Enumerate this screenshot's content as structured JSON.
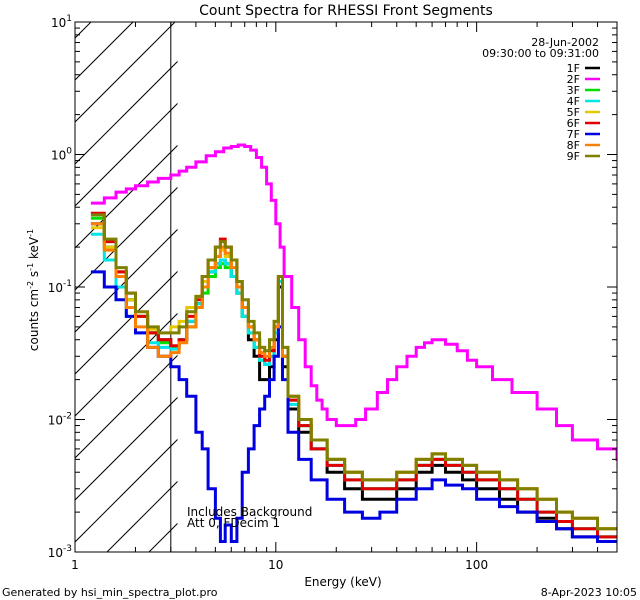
{
  "chart_data": {
    "type": "line",
    "title": "Count Spectra for RHESSI Front Segments",
    "xlabel": "Energy (keV)",
    "ylabel_parts": [
      "counts cm",
      "-2",
      " s",
      "-1",
      " keV",
      "-1"
    ],
    "xscale": "log",
    "yscale": "log",
    "xlim": [
      1,
      500
    ],
    "ylim": [
      0.001,
      10
    ],
    "x_ticks": [
      {
        "value": 1,
        "label": "1"
      },
      {
        "value": 10,
        "label": "10"
      },
      {
        "value": 100,
        "label": "100"
      }
    ],
    "y_ticks": [
      {
        "value": 0.001,
        "base": "10",
        "exp": "-3"
      },
      {
        "value": 0.01,
        "base": "10",
        "exp": "-2"
      },
      {
        "value": 0.1,
        "base": "10",
        "exp": "-1"
      },
      {
        "value": 1,
        "base": "10",
        "exp": "0"
      },
      {
        "value": 10,
        "base": "10",
        "exp": "1"
      }
    ],
    "hatched_region": [
      1,
      3
    ],
    "info": {
      "date": "28-Jun-2002",
      "time_range": "09:30:00 to 09:31:00"
    },
    "annotation": [
      "Includes Background",
      "Att 0, FDecim 1"
    ],
    "legend_position": "top-right",
    "series": [
      {
        "name": "1F",
        "color": "#000000",
        "x": [
          1.2,
          1.4,
          1.6,
          1.8,
          2.0,
          2.3,
          2.6,
          3.0,
          3.3,
          3.6,
          4.0,
          4.3,
          4.6,
          5.0,
          5.3,
          5.6,
          6.0,
          6.4,
          6.8,
          7.3,
          7.8,
          8.3,
          8.8,
          9.3,
          9.8,
          10.3,
          10.8,
          11.5,
          13,
          15,
          18,
          22,
          27,
          33,
          40,
          50,
          60,
          70,
          85,
          100,
          130,
          160,
          200,
          250,
          300,
          400
        ],
        "y": [
          0.3,
          0.2,
          0.12,
          0.08,
          0.06,
          0.045,
          0.04,
          0.035,
          0.04,
          0.055,
          0.075,
          0.1,
          0.13,
          0.15,
          0.16,
          0.15,
          0.12,
          0.09,
          0.06,
          0.04,
          0.03,
          0.02,
          0.02,
          0.025,
          0.04,
          0.1,
          0.025,
          0.012,
          0.008,
          0.006,
          0.004,
          0.003,
          0.0025,
          0.0025,
          0.003,
          0.004,
          0.0045,
          0.004,
          0.0035,
          0.003,
          0.0025,
          0.002,
          0.0018,
          0.0015,
          0.0013,
          0.0012
        ]
      },
      {
        "name": "2F",
        "color": "#ff00ff",
        "x": [
          1.2,
          1.4,
          1.6,
          1.8,
          2.0,
          2.3,
          2.6,
          3.0,
          3.3,
          3.6,
          4.0,
          4.5,
          5.0,
          5.5,
          6.0,
          6.5,
          7.0,
          7.5,
          8.0,
          8.5,
          9.0,
          9.5,
          10.0,
          10.5,
          11.0,
          12.0,
          13.0,
          14.0,
          15.0,
          16.0,
          17.0,
          18.0,
          20.0,
          22.0,
          25.0,
          28.0,
          32.0,
          36.0,
          40.0,
          45.0,
          50.0,
          55.0,
          60.0,
          70.0,
          80.0,
          90.0,
          100.0,
          120.0,
          150.0,
          200.0,
          250.0,
          300.0,
          400.0,
          500.0
        ],
        "y": [
          0.43,
          0.47,
          0.52,
          0.55,
          0.58,
          0.62,
          0.66,
          0.7,
          0.75,
          0.8,
          0.88,
          0.98,
          1.05,
          1.12,
          1.15,
          1.18,
          1.15,
          1.08,
          0.95,
          0.8,
          0.6,
          0.45,
          0.3,
          0.2,
          0.12,
          0.07,
          0.04,
          0.025,
          0.018,
          0.014,
          0.012,
          0.01,
          0.009,
          0.009,
          0.01,
          0.012,
          0.016,
          0.02,
          0.025,
          0.03,
          0.035,
          0.038,
          0.04,
          0.037,
          0.033,
          0.028,
          0.025,
          0.02,
          0.016,
          0.012,
          0.009,
          0.007,
          0.006,
          0.005
        ]
      },
      {
        "name": "3F",
        "color": "#00e000",
        "x": [
          1.2,
          1.4,
          1.6,
          1.8,
          2.0,
          2.3,
          2.6,
          3.0,
          3.3,
          3.6,
          4.0,
          4.3,
          4.6,
          5.0,
          5.3,
          5.6,
          6.0,
          6.4,
          6.8,
          7.3,
          7.8,
          8.3,
          8.8,
          9.3,
          9.8,
          10.3,
          10.8,
          11.5,
          13,
          15,
          18,
          22,
          27,
          33,
          40,
          50,
          60,
          70,
          85,
          100,
          130,
          160,
          200,
          250,
          300,
          400
        ],
        "y": [
          0.33,
          0.22,
          0.13,
          0.08,
          0.06,
          0.045,
          0.038,
          0.035,
          0.04,
          0.05,
          0.07,
          0.09,
          0.12,
          0.14,
          0.15,
          0.14,
          0.12,
          0.09,
          0.06,
          0.045,
          0.035,
          0.028,
          0.026,
          0.03,
          0.045,
          0.11,
          0.03,
          0.014,
          0.009,
          0.007,
          0.005,
          0.004,
          0.003,
          0.003,
          0.0035,
          0.0045,
          0.005,
          0.0045,
          0.004,
          0.0035,
          0.003,
          0.0025,
          0.002,
          0.0017,
          0.0015,
          0.0013
        ]
      },
      {
        "name": "4F",
        "color": "#00e5e5",
        "x": [
          1.2,
          1.4,
          1.6,
          1.8,
          2.0,
          2.3,
          2.6,
          3.0,
          3.3,
          3.6,
          4.0,
          4.3,
          4.6,
          5.0,
          5.3,
          5.6,
          6.0,
          6.4,
          6.8,
          7.3,
          7.8,
          8.3,
          8.8,
          9.3,
          9.8,
          10.3,
          10.8,
          11.5,
          13,
          15,
          18,
          22,
          27,
          33,
          40,
          50,
          60,
          70,
          85,
          100,
          130,
          160,
          200,
          250,
          300,
          400
        ],
        "y": [
          0.25,
          0.16,
          0.1,
          0.06,
          0.045,
          0.038,
          0.035,
          0.034,
          0.04,
          0.055,
          0.075,
          0.1,
          0.13,
          0.15,
          0.16,
          0.15,
          0.12,
          0.09,
          0.06,
          0.045,
          0.035,
          0.028,
          0.026,
          0.03,
          0.045,
          0.11,
          0.03,
          0.013,
          0.009,
          0.006,
          0.0045,
          0.0035,
          0.003,
          0.003,
          0.0035,
          0.0045,
          0.005,
          0.0045,
          0.004,
          0.0035,
          0.003,
          0.0025,
          0.002,
          0.0017,
          0.0015,
          0.0013
        ]
      },
      {
        "name": "5F",
        "color": "#e5c800",
        "x": [
          1.2,
          1.4,
          1.6,
          1.8,
          2.0,
          2.3,
          2.6,
          3.0,
          3.3,
          3.6,
          4.0,
          4.3,
          4.6,
          5.0,
          5.3,
          5.6,
          6.0,
          6.4,
          6.8,
          7.3,
          7.8,
          8.3,
          8.8,
          9.3,
          9.8,
          10.3,
          10.8,
          11.5,
          13,
          15,
          18,
          22,
          27,
          33,
          40,
          50,
          60,
          70,
          85,
          100,
          130,
          160,
          200,
          250,
          300,
          400
        ],
        "y": [
          0.28,
          0.2,
          0.13,
          0.08,
          0.06,
          0.048,
          0.045,
          0.05,
          0.055,
          0.07,
          0.085,
          0.11,
          0.14,
          0.17,
          0.19,
          0.17,
          0.14,
          0.1,
          0.07,
          0.05,
          0.04,
          0.035,
          0.033,
          0.04,
          0.055,
          0.12,
          0.035,
          0.015,
          0.01,
          0.007,
          0.005,
          0.004,
          0.0035,
          0.0035,
          0.004,
          0.005,
          0.0055,
          0.005,
          0.0045,
          0.004,
          0.0035,
          0.003,
          0.0025,
          0.002,
          0.0018,
          0.0015
        ]
      },
      {
        "name": "6F",
        "color": "#e00000",
        "x": [
          1.2,
          1.4,
          1.6,
          1.8,
          2.0,
          2.3,
          2.6,
          3.0,
          3.3,
          3.6,
          4.0,
          4.3,
          4.6,
          5.0,
          5.3,
          5.6,
          6.0,
          6.4,
          6.8,
          7.3,
          7.8,
          8.3,
          8.8,
          9.3,
          9.8,
          10.3,
          10.8,
          11.5,
          13,
          15,
          18,
          22,
          27,
          33,
          40,
          50,
          60,
          70,
          85,
          100,
          130,
          160,
          200,
          250,
          300,
          400
        ],
        "y": [
          0.36,
          0.22,
          0.13,
          0.09,
          0.06,
          0.045,
          0.04,
          0.036,
          0.04,
          0.06,
          0.08,
          0.12,
          0.16,
          0.2,
          0.23,
          0.2,
          0.16,
          0.11,
          0.07,
          0.05,
          0.04,
          0.03,
          0.028,
          0.033,
          0.05,
          0.12,
          0.03,
          0.014,
          0.009,
          0.006,
          0.0045,
          0.0035,
          0.003,
          0.003,
          0.0035,
          0.0045,
          0.005,
          0.0045,
          0.004,
          0.0035,
          0.003,
          0.0025,
          0.002,
          0.0017,
          0.0015,
          0.0013
        ]
      },
      {
        "name": "7F",
        "color": "#0000e0",
        "x": [
          1.2,
          1.4,
          1.6,
          1.8,
          2.0,
          2.3,
          2.6,
          3.0,
          3.3,
          3.6,
          4.0,
          4.3,
          4.6,
          5.0,
          5.3,
          5.6,
          6.0,
          6.4,
          6.8,
          7.3,
          7.8,
          8.3,
          8.8,
          9.3,
          9.8,
          10.3,
          10.8,
          11.5,
          13,
          15,
          18,
          22,
          27,
          33,
          40,
          50,
          60,
          70,
          85,
          100,
          130,
          160,
          200,
          250,
          300,
          400
        ],
        "y": [
          0.13,
          0.1,
          0.08,
          0.06,
          0.045,
          0.035,
          0.03,
          0.025,
          0.02,
          0.015,
          0.008,
          0.006,
          0.003,
          0.0018,
          0.0012,
          0.0016,
          0.0012,
          0.0018,
          0.004,
          0.006,
          0.009,
          0.012,
          0.015,
          0.02,
          0.03,
          0.05,
          0.02,
          0.008,
          0.005,
          0.0035,
          0.0025,
          0.002,
          0.0018,
          0.002,
          0.0025,
          0.003,
          0.0035,
          0.0032,
          0.003,
          0.0025,
          0.0022,
          0.002,
          0.0017,
          0.0015,
          0.0013,
          0.0012
        ]
      },
      {
        "name": "8F",
        "color": "#ff8000",
        "x": [
          1.2,
          1.4,
          1.6,
          1.8,
          2.0,
          2.3,
          2.6,
          3.0,
          3.3,
          3.6,
          4.0,
          4.3,
          4.6,
          5.0,
          5.3,
          5.6,
          6.0,
          6.4,
          6.8,
          7.3,
          7.8,
          8.3,
          8.8,
          9.3,
          9.8,
          10.3,
          10.8,
          11.5,
          13,
          15,
          18,
          22,
          27,
          33,
          40,
          50,
          60,
          70,
          85,
          100,
          130,
          160,
          200,
          250,
          300,
          400
        ],
        "y": [
          0.3,
          0.19,
          0.12,
          0.07,
          0.05,
          0.035,
          0.03,
          0.032,
          0.038,
          0.05,
          0.07,
          0.1,
          0.14,
          0.17,
          0.2,
          0.18,
          0.14,
          0.1,
          0.07,
          0.05,
          0.04,
          0.032,
          0.03,
          0.035,
          0.05,
          0.12,
          0.03,
          0.015,
          0.01,
          0.007,
          0.005,
          0.004,
          0.0035,
          0.0035,
          0.004,
          0.005,
          0.0055,
          0.005,
          0.0045,
          0.004,
          0.0035,
          0.003,
          0.0025,
          0.002,
          0.0018,
          0.0015
        ]
      },
      {
        "name": "9F",
        "color": "#7f7f00",
        "x": [
          1.2,
          1.4,
          1.6,
          1.8,
          2.0,
          2.3,
          2.6,
          3.0,
          3.3,
          3.6,
          4.0,
          4.3,
          4.6,
          5.0,
          5.3,
          5.6,
          6.0,
          6.4,
          6.8,
          7.3,
          7.8,
          8.3,
          8.8,
          9.3,
          9.8,
          10.3,
          10.8,
          11.5,
          13,
          15,
          18,
          22,
          27,
          33,
          40,
          50,
          60,
          70,
          85,
          100,
          130,
          160,
          200,
          250,
          300,
          400
        ],
        "y": [
          0.35,
          0.23,
          0.14,
          0.09,
          0.065,
          0.05,
          0.045,
          0.045,
          0.05,
          0.065,
          0.085,
          0.12,
          0.16,
          0.2,
          0.22,
          0.2,
          0.16,
          0.11,
          0.08,
          0.055,
          0.045,
          0.035,
          0.033,
          0.04,
          0.055,
          0.12,
          0.035,
          0.015,
          0.01,
          0.007,
          0.005,
          0.004,
          0.0035,
          0.0035,
          0.004,
          0.005,
          0.0055,
          0.005,
          0.0045,
          0.004,
          0.0035,
          0.003,
          0.0025,
          0.002,
          0.0018,
          0.0015
        ]
      }
    ]
  },
  "footer": {
    "generated_by": "Generated by hsi_min_spectra_plot.pro",
    "date": "8-Apr-2023 10:05"
  }
}
